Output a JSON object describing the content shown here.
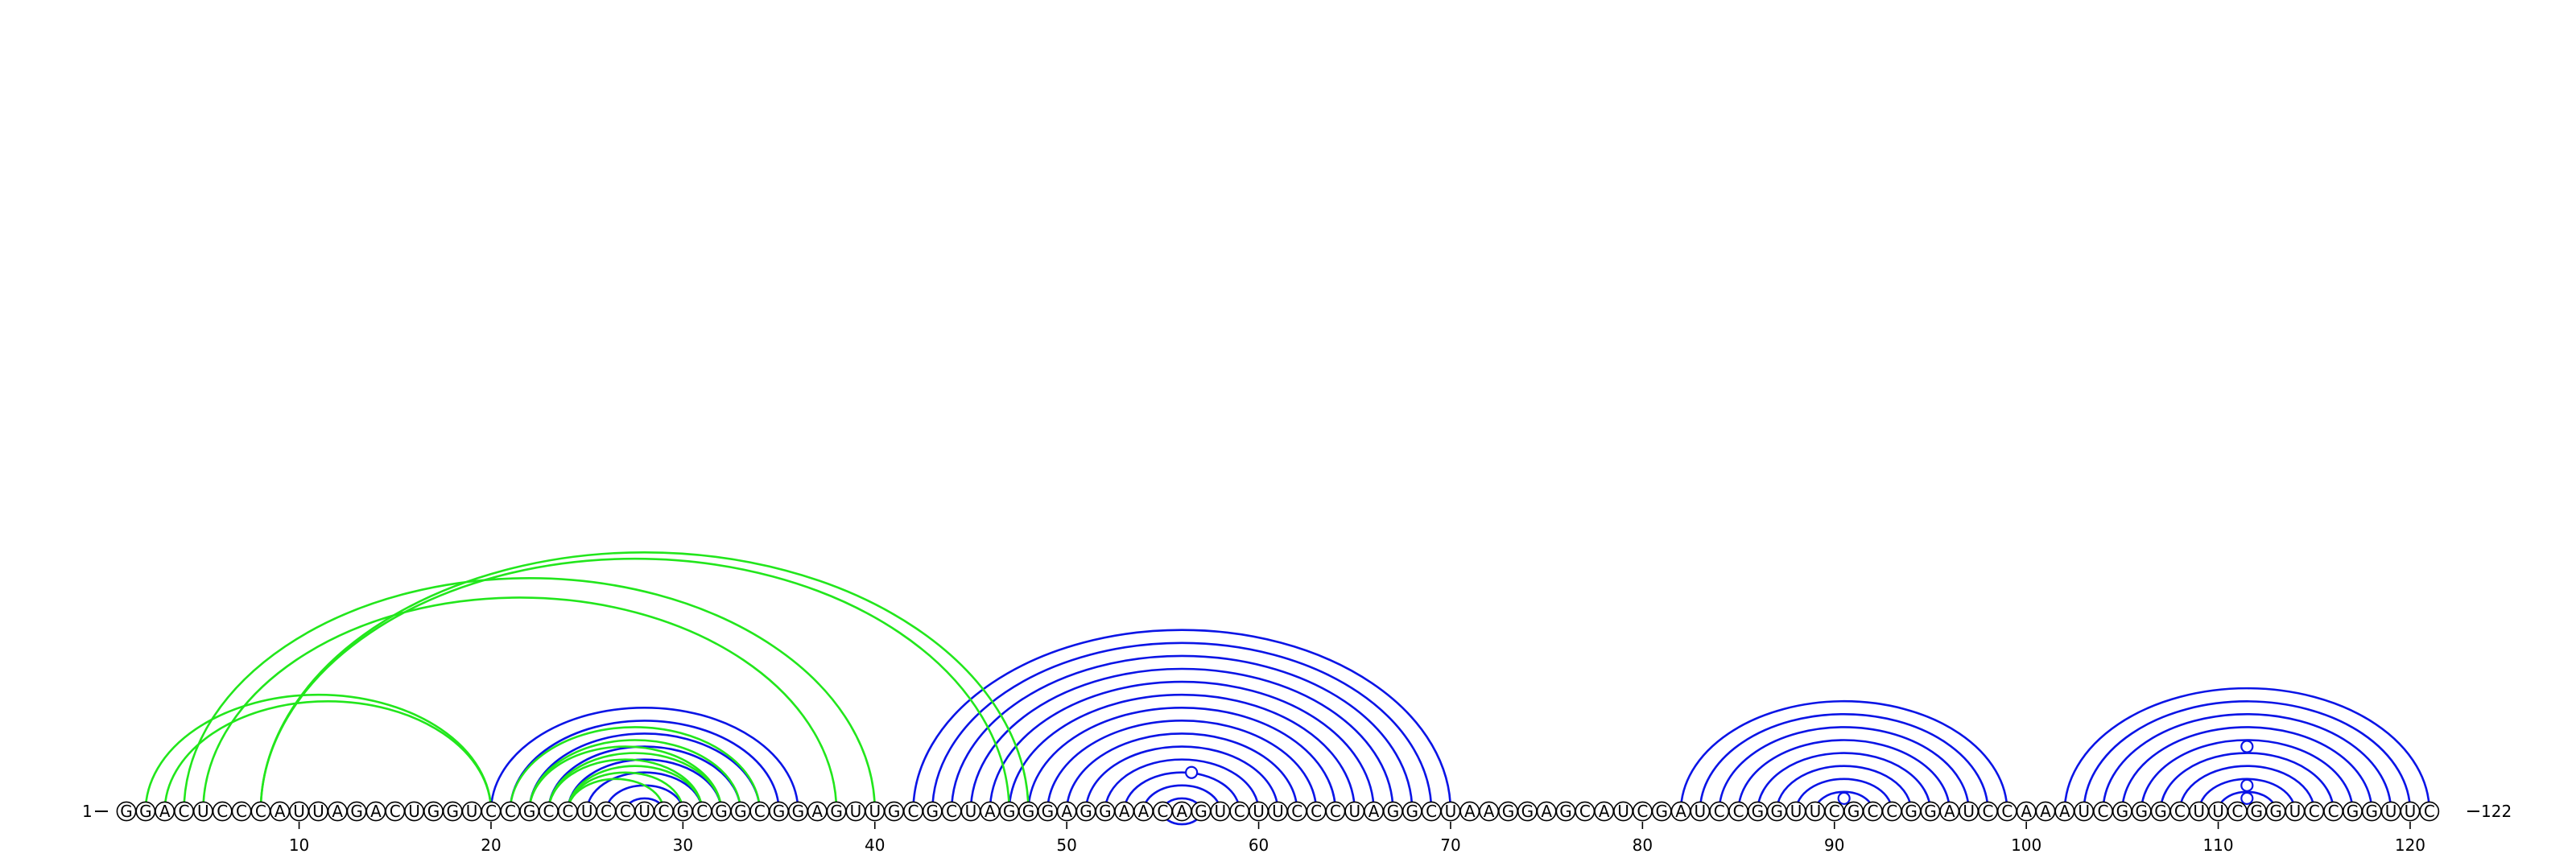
{
  "diagram": {
    "type": "rna-arc-diagram",
    "sequence": "GGACUCCCAUUAGACUGGUCCGCCUCCUCGCGGCGGAGUUGCGCUAGGGAGGAACAGUCUUCCCUAGGCUAAGGAGCAUCGAUCCGGUUCGCCGGAUCCAAAUCGGGCUUCGGUCCGGUUC",
    "length": 122,
    "start_label": "1",
    "end_label": "122",
    "ticks": [
      10,
      20,
      30,
      40,
      50,
      60,
      70,
      80,
      90,
      100,
      110,
      120
    ],
    "colors": {
      "pseudoknot": "#22e61c",
      "helix": "#0a14e6",
      "outline": "#000000",
      "background": "#ffffff"
    },
    "green_pairs": [
      [
        2,
        20
      ],
      [
        3,
        20
      ],
      [
        4,
        40
      ],
      [
        5,
        38
      ],
      [
        8,
        48
      ],
      [
        8,
        47
      ],
      [
        21,
        34
      ],
      [
        22,
        33
      ],
      [
        22,
        32
      ],
      [
        23,
        32
      ],
      [
        23,
        31
      ],
      [
        24,
        31
      ],
      [
        24,
        30
      ],
      [
        24,
        29
      ]
    ],
    "blue_helices": [
      {
        "i": 20,
        "j": 36,
        "count": 8
      },
      {
        "i": 42,
        "j": 70,
        "count": 16
      },
      {
        "i": 82,
        "j": 99,
        "count": 8
      },
      {
        "i": 102,
        "j": 121,
        "count": 9
      }
    ],
    "gu_markers": [
      56.5,
      90.5,
      111.5,
      111.5,
      111.5
    ],
    "gu_marker_depths": [
      3,
      1,
      1,
      2,
      5
    ]
  }
}
